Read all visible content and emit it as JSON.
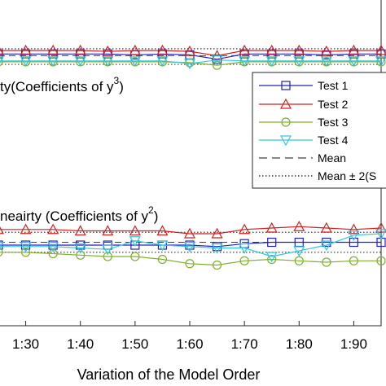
{
  "chart_data": {
    "type": "line",
    "xlabel": "Variation of the Model Order",
    "x_tick_labels": [
      "1:30",
      "1:40",
      "1:50",
      "1:60",
      "1:70",
      "1:80",
      "1:90"
    ],
    "x": [
      25,
      30,
      35,
      40,
      45,
      50,
      55,
      60,
      65,
      70,
      75,
      80,
      85,
      90,
      95
    ],
    "xlim": [
      25,
      95
    ],
    "annotations": [
      {
        "text_a": "ty(Coefficients of y",
        "sup_a": "3",
        "text_b": ")"
      },
      {
        "text_a": "neairty (Coefficients of y",
        "sup_a": "2",
        "text_b": ")"
      }
    ],
    "legend": {
      "position": "right",
      "entries": [
        "Test 1",
        "Test 2",
        "Test 3",
        "Test 4",
        "Mean",
        "Mean ± 2(S"
      ]
    },
    "colors": {
      "test1": "#2020c0",
      "test2": "#d02020",
      "test3": "#80b030",
      "test4": "#30c8e0",
      "mean": "#404040",
      "bound": "#404040"
    },
    "panels": [
      {
        "name": "y3",
        "ylim": [
          0.75,
          1.5
        ],
        "mean": 1.14,
        "bounds": [
          1.04,
          1.22
        ],
        "series": [
          {
            "key": "test1",
            "values": [
              1.16,
              1.16,
              1.16,
              1.16,
              1.16,
              1.15,
              1.16,
              1.15,
              1.1,
              1.16,
              1.16,
              1.16,
              1.15,
              1.16,
              1.16
            ]
          },
          {
            "key": "test2",
            "values": [
              1.2,
              1.2,
              1.2,
              1.2,
              1.19,
              1.2,
              1.2,
              1.19,
              1.14,
              1.2,
              1.2,
              1.2,
              1.19,
              1.2,
              1.2
            ]
          },
          {
            "key": "test3",
            "values": [
              1.07,
              1.07,
              1.07,
              1.07,
              1.07,
              1.07,
              1.07,
              1.06,
              1.03,
              1.07,
              1.07,
              1.07,
              1.07,
              1.07,
              1.07
            ]
          },
          {
            "key": "test4",
            "values": [
              1.08,
              1.08,
              1.08,
              1.08,
              1.08,
              1.08,
              1.08,
              1.05,
              1.09,
              1.08,
              1.08,
              1.08,
              1.08,
              1.08,
              1.08
            ]
          }
        ]
      },
      {
        "name": "y2",
        "ylim": [
          -0.3,
          0.3
        ],
        "mean": 0.0,
        "bounds": [
          -0.07,
          0.07
        ],
        "series": [
          {
            "key": "test1",
            "values": [
              -0.02,
              -0.02,
              -0.02,
              -0.02,
              -0.02,
              -0.02,
              -0.02,
              -0.02,
              -0.03,
              -0.01,
              0.0,
              0.0,
              0.0,
              0.0,
              0.0
            ]
          },
          {
            "key": "test2",
            "values": [
              0.09,
              0.09,
              0.09,
              0.08,
              0.08,
              0.08,
              0.08,
              0.06,
              0.06,
              0.09,
              0.1,
              0.11,
              0.1,
              0.09,
              0.1
            ]
          },
          {
            "key": "test3",
            "values": [
              -0.07,
              -0.07,
              -0.08,
              -0.09,
              -0.1,
              -0.1,
              -0.12,
              -0.15,
              -0.16,
              -0.13,
              -0.12,
              -0.13,
              -0.14,
              -0.13,
              -0.13
            ]
          },
          {
            "key": "test4",
            "values": [
              -0.03,
              -0.03,
              -0.03,
              -0.04,
              -0.05,
              0.01,
              -0.02,
              -0.03,
              -0.04,
              -0.04,
              -0.1,
              -0.06,
              -0.02,
              0.05,
              0.06
            ]
          }
        ]
      }
    ]
  }
}
